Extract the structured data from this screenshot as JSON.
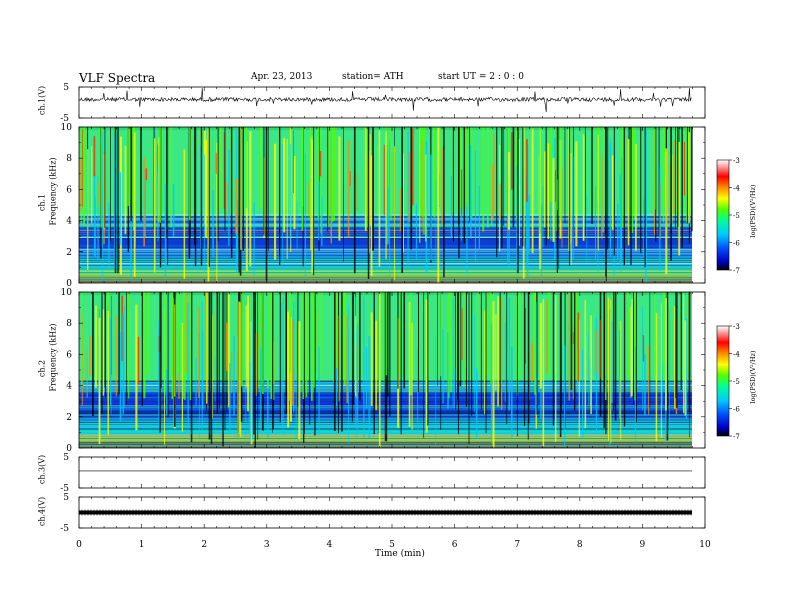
{
  "header": {
    "title": "VLF  Spectra",
    "date": "Apr. 23, 2013",
    "station": "station= ATH",
    "start_ut": "start  UT  =   2  : 0   : 0"
  },
  "chart_data": [
    {
      "type": "line",
      "panel": "ch1-waveform",
      "ylabel": "ch.1(V)",
      "ylim": [
        -5,
        5
      ],
      "yticks": [
        "5",
        "-5"
      ],
      "xlim": [
        0,
        10
      ],
      "trace": "noisy waveform centered near 1 V with spikes",
      "baseline": 1
    },
    {
      "type": "heatmap",
      "panel": "ch1-spectrogram",
      "ylabel": "ch.1\nFrequency (kHz)",
      "ylabel_lines": [
        "ch.1",
        "Frequency (kHz)"
      ],
      "ylim": [
        0,
        10
      ],
      "yticks": [
        "0",
        "2",
        "4",
        "6",
        "8",
        "10"
      ],
      "xlim": [
        0,
        9.8
      ],
      "colorbar": {
        "label": "log(PSD)(V²/Hz)",
        "range": [
          -7,
          -3
        ],
        "ticks": [
          "-3",
          "-4",
          "-5",
          "-6",
          "-7"
        ],
        "colors": [
          "#000000",
          "#0000c8",
          "#0050ff",
          "#00c8ff",
          "#00ff96",
          "#50ff00",
          "#ffff00",
          "#ff8c00",
          "#ff0000",
          "#ff8c8c",
          "#ffffff"
        ]
      }
    },
    {
      "type": "heatmap",
      "panel": "ch2-spectrogram",
      "ylabel": "ch.2\nFrequency (kHz)",
      "ylabel_lines": [
        "ch.2",
        "Frequency (kHz)"
      ],
      "ylim": [
        0,
        10
      ],
      "yticks": [
        "0",
        "2",
        "4",
        "6",
        "8",
        "10"
      ],
      "xlim": [
        0,
        9.8
      ],
      "colorbar": {
        "label": "log(PSD)(V²/Hz)",
        "range": [
          -7,
          -3
        ],
        "ticks": [
          "-3",
          "-4",
          "-5",
          "-6",
          "-7"
        ]
      }
    },
    {
      "type": "line",
      "panel": "ch3-waveform",
      "ylabel": "ch.3(V)",
      "ylim": [
        -5,
        5
      ],
      "yticks": [
        "5",
        "-5"
      ],
      "xlim": [
        0,
        10
      ],
      "baseline": 0.5
    },
    {
      "type": "line",
      "panel": "ch4-waveform",
      "ylabel": "ch.4(V)",
      "ylim": [
        -5,
        5
      ],
      "yticks": [
        "5",
        "-5"
      ],
      "xlim": [
        0,
        10
      ],
      "baseline": 0
    }
  ],
  "xaxis": {
    "label": "Time (min)",
    "ticks": [
      "0",
      "1",
      "2",
      "3",
      "4",
      "5",
      "6",
      "7",
      "8",
      "9",
      "10"
    ]
  }
}
